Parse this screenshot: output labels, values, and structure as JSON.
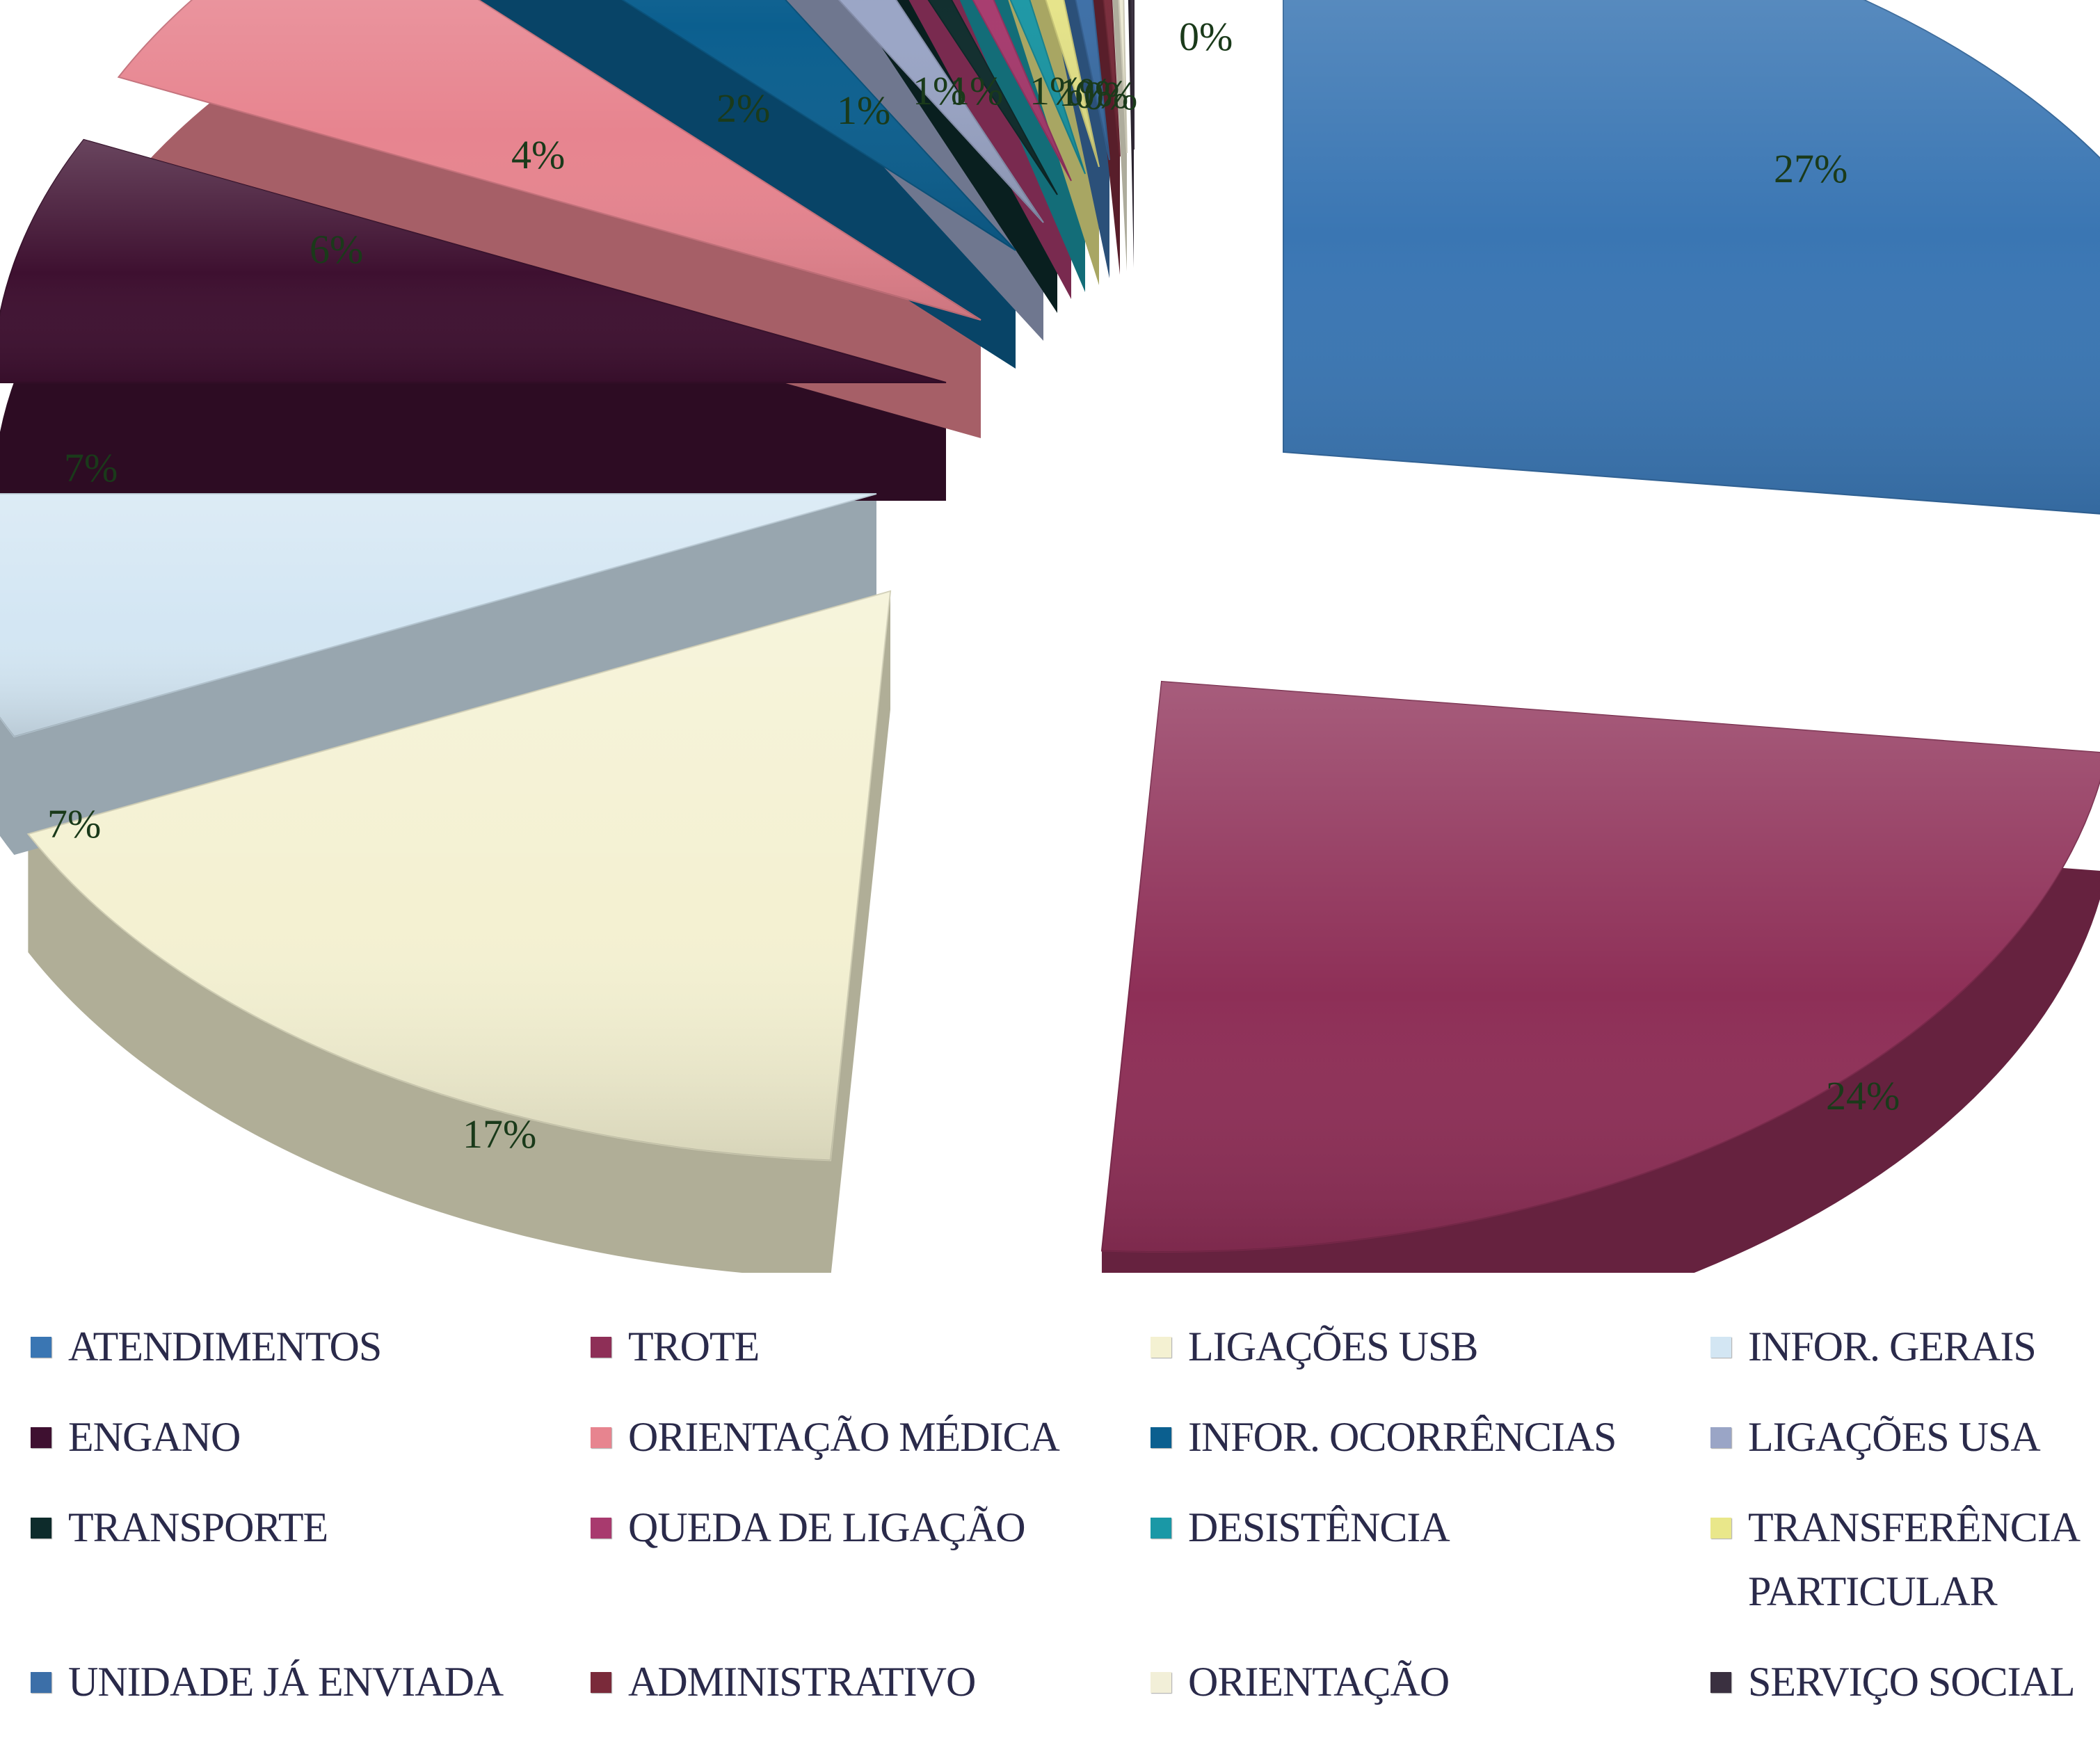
{
  "chart_data": {
    "type": "pie",
    "title": "",
    "legend_position": "bottom",
    "slices": [
      {
        "label": "ATENDIMENTOS",
        "value": 27,
        "value_label": "27%",
        "color": "#3a76b3"
      },
      {
        "label": "TROTE",
        "value": 24,
        "value_label": "24%",
        "color": "#8e2f57"
      },
      {
        "label": "LIGAÇÕES USB",
        "value": 17,
        "value_label": "17%",
        "color": "#f4f1d2"
      },
      {
        "label": "INFOR. GERAIS",
        "value": 7,
        "value_label": "7%",
        "color": "#d3e6f3"
      },
      {
        "label": "ENGANO",
        "value": 7,
        "value_label": "7%",
        "color": "#3e1030"
      },
      {
        "label": "ORIENTAÇÃO MÉDICA",
        "value": 6,
        "value_label": "6%",
        "color": "#e7848f"
      },
      {
        "label": "INFOR. OCORRÊNCIAS",
        "value": 4,
        "value_label": "4%",
        "color": "#0b5f8f"
      },
      {
        "label": "LIGAÇÕES USA",
        "value": 2,
        "value_label": "2%",
        "color": "#9aa5c6"
      },
      {
        "label": "TRANSPORTE",
        "value": 1,
        "value_label": "1%",
        "color": "#0d2b2b"
      },
      {
        "label": "QUEDA DE LIGAÇÃO",
        "value": 1,
        "value_label": "1%",
        "color": "#a83a6e"
      },
      {
        "label": "DESISTÊNCIA",
        "value": 1,
        "value_label": "1%",
        "color": "#1a98a6"
      },
      {
        "label": "TRANSFERÊNCIA\nPARTICULAR",
        "value": 1,
        "value_label": "1%",
        "color": "#e9e78a"
      },
      {
        "label": "UNIDADE JÁ ENVIADA",
        "value": 1,
        "value_label": "1%",
        "color": "#3c6fa8"
      },
      {
        "label": "ADMINISTRATIVO",
        "value": 0.5,
        "value_label": "0%",
        "color": "#7a2a3a"
      },
      {
        "label": "ORIENTAÇÃO",
        "value": 0.3,
        "value_label": "0%",
        "color": "#f2efd8"
      },
      {
        "label": "SERVIÇO SOCIAL",
        "value": 0.2,
        "value_label": "0%",
        "color": "#3a3040"
      }
    ]
  }
}
